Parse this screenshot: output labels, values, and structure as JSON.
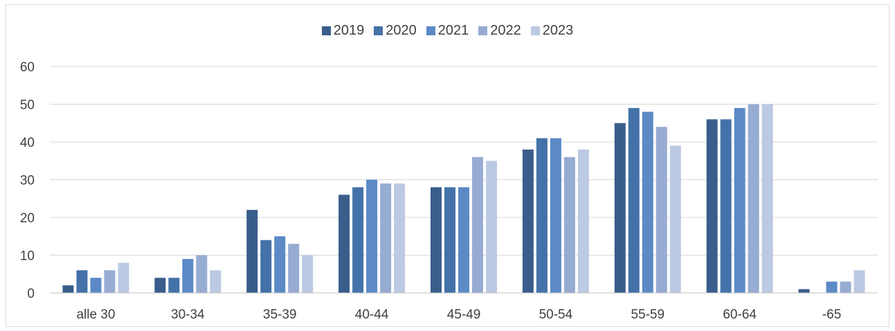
{
  "chart_data": {
    "type": "bar",
    "title": "",
    "xlabel": "",
    "ylabel": "",
    "ylim": [
      0,
      60
    ],
    "yticks": [
      0,
      10,
      20,
      30,
      40,
      50,
      60
    ],
    "grid": true,
    "legend_position": "top-center",
    "categories": [
      "alle 30",
      "30-34",
      "35-39",
      "40-44",
      "45-49",
      "50-54",
      "55-59",
      "60-64",
      "-65"
    ],
    "series": [
      {
        "name": "2019",
        "color": "#3a5e8c",
        "values": [
          2,
          4,
          22,
          26,
          28,
          38,
          45,
          46,
          1
        ]
      },
      {
        "name": "2020",
        "color": "#4472a8",
        "values": [
          6,
          4,
          14,
          28,
          28,
          41,
          49,
          46,
          0
        ]
      },
      {
        "name": "2021",
        "color": "#5b8ac6",
        "values": [
          4,
          9,
          15,
          30,
          28,
          41,
          48,
          49,
          3
        ]
      },
      {
        "name": "2022",
        "color": "#97acd2",
        "values": [
          6,
          10,
          13,
          29,
          36,
          36,
          44,
          50,
          3
        ]
      },
      {
        "name": "2023",
        "color": "#bcc9e2",
        "values": [
          8,
          6,
          10,
          29,
          35,
          38,
          39,
          50,
          6
        ]
      }
    ]
  }
}
